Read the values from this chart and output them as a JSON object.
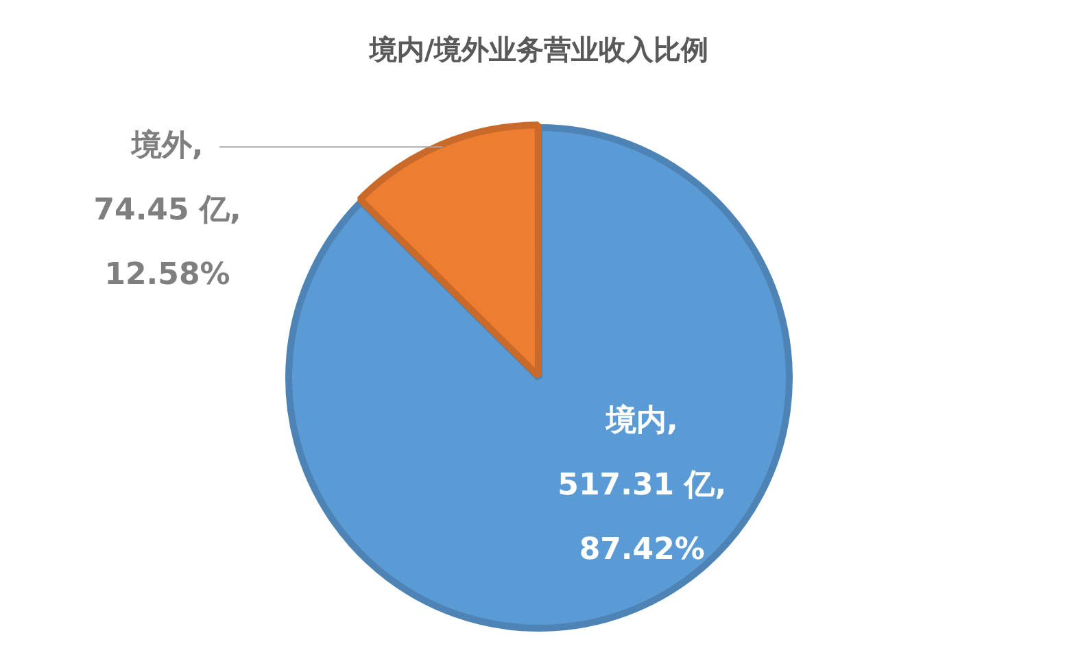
{
  "chart_data": {
    "type": "pie",
    "title": "境内/境外业务营业收入比例",
    "categories": [
      "境内",
      "境外"
    ],
    "values": [
      517.31,
      74.45
    ],
    "colors": [
      "#5b9bd5",
      "#ed7d31"
    ],
    "value_labels": [
      ",\n517.31 亿,\n87.42%",
      ",\n74.45 亿,\n12.58%"
    ],
    "legend": false
  }
}
